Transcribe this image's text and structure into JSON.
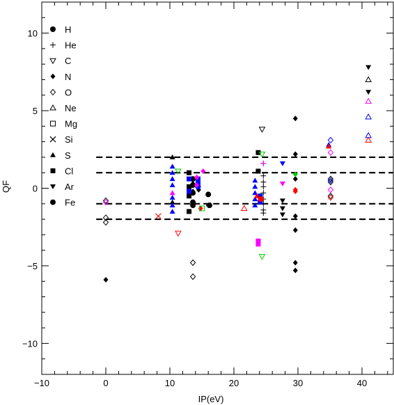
{
  "chart_data": {
    "type": "scatter",
    "title": "",
    "xlabel": "IP(eV)",
    "ylabel": "QF",
    "xlim": [
      -10,
      45
    ],
    "ylim": [
      -12,
      12
    ],
    "x_ticks": [
      -10,
      0,
      10,
      20,
      30,
      40
    ],
    "y_ticks": [
      -10,
      -5,
      0,
      5,
      10
    ],
    "grid": false,
    "legend_position": "left",
    "reference_lines": [
      {
        "y": 2,
        "style": "dashed"
      },
      {
        "y": 1,
        "style": "dashed"
      },
      {
        "y": -1,
        "style": "dashed"
      },
      {
        "y": -2,
        "style": "dashed"
      }
    ],
    "series": [
      {
        "name": "H",
        "marker": "filled-circle",
        "color": "#000000",
        "points": [
          [
            13.6,
            0.6
          ],
          [
            13.6,
            0.2
          ],
          [
            13.6,
            -0.3
          ],
          [
            13.6,
            -0.9
          ],
          [
            13.6,
            -1.1
          ],
          [
            16.0,
            -0.4
          ]
        ]
      },
      {
        "name": "He",
        "marker": "plus",
        "color": "#000000",
        "points": [
          [
            24.6,
            0.8
          ],
          [
            24.6,
            0.4
          ],
          [
            24.6,
            0.1
          ],
          [
            24.6,
            -0.3
          ],
          [
            24.6,
            -0.7
          ],
          [
            24.6,
            -1.0
          ],
          [
            24.6,
            -1.4
          ],
          [
            24.6,
            -1.6
          ],
          [
            24.6,
            1.6
          ]
        ]
      },
      {
        "name": "C",
        "marker": "open-triangle-down",
        "color": "#000000",
        "points": [
          [
            24.4,
            3.8
          ]
        ]
      },
      {
        "name": "N",
        "marker": "filled-diamond",
        "color": "#000000",
        "points": [
          [
            0,
            -5.9
          ],
          [
            13.6,
            -0.2
          ],
          [
            13.6,
            0.3
          ],
          [
            14.5,
            -0.1
          ],
          [
            29.6,
            4.5
          ],
          [
            29.6,
            2.2
          ],
          [
            29.6,
            0.6
          ],
          [
            29.6,
            -1.8
          ],
          [
            29.6,
            -2.7
          ],
          [
            29.6,
            -4.8
          ],
          [
            29.6,
            -5.3
          ],
          [
            16.0,
            -1.1
          ]
        ]
      },
      {
        "name": "O",
        "marker": "open-diamond",
        "color": "#000000",
        "points": [
          [
            0,
            -0.8
          ],
          [
            0,
            -1.9
          ],
          [
            0,
            -2.2
          ],
          [
            13.6,
            -4.8
          ],
          [
            13.6,
            -5.7
          ],
          [
            35.1,
            0.6
          ],
          [
            35.1,
            0.4
          ],
          [
            35.1,
            -0.5
          ]
        ]
      },
      {
        "name": "Ne",
        "marker": "open-triangle-up",
        "color": "#000000",
        "points": [
          [
            41.0,
            7.0
          ]
        ]
      },
      {
        "name": "Mg",
        "marker": "open-square",
        "color": "#000000",
        "points": []
      },
      {
        "name": "Si",
        "marker": "cross",
        "color": "#000000",
        "points": []
      },
      {
        "name": "S",
        "marker": "filled-triangle-up",
        "color": "#000000",
        "points": [
          [
            10.4,
            2.0
          ],
          [
            10.4,
            -0.9
          ]
        ]
      },
      {
        "name": "Cl",
        "marker": "filled-square",
        "color": "#000000",
        "points": [
          [
            13.0,
            -1.5
          ],
          [
            13.0,
            -0.5
          ],
          [
            13.0,
            0.1
          ],
          [
            13.0,
            1.0
          ],
          [
            23.8,
            2.3
          ],
          [
            23.8,
            1.1
          ]
        ]
      },
      {
        "name": "Ar",
        "marker": "filled-triangle-down",
        "color": "#000000",
        "points": [
          [
            41.0,
            7.8
          ],
          [
            41.0,
            6.2
          ],
          [
            27.6,
            -1.7
          ],
          [
            27.6,
            -1.3
          ],
          [
            27.6,
            -0.8
          ]
        ]
      },
      {
        "name": "Fe",
        "marker": "filled-circle",
        "color": "#000000",
        "points": [
          [
            16.2,
            -1.1
          ]
        ]
      },
      {
        "name": "",
        "marker": "filled-triangle-up",
        "color": "#0000ff",
        "points": [
          [
            10.4,
            1.4
          ],
          [
            10.4,
            1.0
          ],
          [
            10.4,
            0.6
          ],
          [
            10.4,
            0.2
          ],
          [
            10.4,
            -0.6
          ],
          [
            10.4,
            -1.1
          ],
          [
            10.4,
            -1.5
          ],
          [
            23.3,
            0.5
          ],
          [
            23.3,
            0.1
          ],
          [
            23.3,
            -0.3
          ],
          [
            23.3,
            -0.7
          ],
          [
            23.3,
            -1.1
          ],
          [
            34.8,
            2.8
          ]
        ]
      },
      {
        "name": "",
        "marker": "filled-square",
        "color": "#0000ff",
        "points": [
          [
            13.0,
            0.6
          ],
          [
            13.0,
            -0.2
          ],
          [
            14.4,
            0.6
          ],
          [
            14.4,
            0.3
          ],
          [
            24.1,
            -0.5
          ],
          [
            24.1,
            -0.9
          ]
        ]
      },
      {
        "name": "",
        "marker": "filled-circle",
        "color": "#0000ff",
        "points": [
          [
            14.4,
            0.1
          ]
        ]
      },
      {
        "name": "",
        "marker": "filled-triangle-down",
        "color": "#0000ff",
        "points": [
          [
            27.6,
            1.6
          ]
        ]
      },
      {
        "name": "",
        "marker": "open-diamond",
        "color": "#0000ff",
        "points": [
          [
            35.1,
            3.1
          ],
          [
            35.1,
            0.5
          ]
        ]
      },
      {
        "name": "",
        "marker": "open-triangle-up",
        "color": "#0000ff",
        "points": [
          [
            41.0,
            4.6
          ],
          [
            41.0,
            3.4
          ]
        ]
      },
      {
        "name": "",
        "marker": "filled-diamond",
        "color": "#ff00ff",
        "points": [
          [
            15.2,
            1.1
          ],
          [
            14.2,
            0.7
          ],
          [
            14.2,
            0.2
          ]
        ]
      },
      {
        "name": "",
        "marker": "filled-triangle-up",
        "color": "#ff00ff",
        "points": [
          [
            10.4,
            -0.3
          ]
        ]
      },
      {
        "name": "",
        "marker": "filled-square",
        "color": "#ff00ff",
        "points": [
          [
            23.8,
            -3.4
          ],
          [
            23.8,
            -3.6
          ]
        ]
      },
      {
        "name": "",
        "marker": "filled-triangle-down",
        "color": "#ff00ff",
        "points": [
          [
            27.6,
            0.3
          ]
        ]
      },
      {
        "name": "",
        "marker": "plus",
        "color": "#ff00ff",
        "points": [
          [
            24.6,
            1.6
          ]
        ]
      },
      {
        "name": "",
        "marker": "open-diamond",
        "color": "#ff00ff",
        "points": [
          [
            0,
            -0.9
          ],
          [
            35.1,
            2.3
          ],
          [
            35.1,
            -0.1
          ]
        ]
      },
      {
        "name": "",
        "marker": "open-triangle-up",
        "color": "#ff00ff",
        "points": [
          [
            41.0,
            5.6
          ]
        ]
      },
      {
        "name": "",
        "marker": "open-triangle-down",
        "color": "#ff0000",
        "points": [
          [
            11.3,
            -2.9
          ]
        ]
      },
      {
        "name": "",
        "marker": "cross",
        "color": "#ff0000",
        "points": [
          [
            8.2,
            -1.8
          ]
        ]
      },
      {
        "name": "",
        "marker": "open-triangle-up",
        "color": "#ff0000",
        "points": [
          [
            21.6,
            -1.3
          ],
          [
            41.0,
            3.1
          ]
        ]
      },
      {
        "name": "",
        "marker": "filled-triangle-up",
        "color": "#ff0000",
        "points": [
          [
            23.6,
            -0.5
          ],
          [
            34.8,
            2.7
          ]
        ]
      },
      {
        "name": "",
        "marker": "filled-diamond",
        "color": "#ff0000",
        "points": [
          [
            14.8,
            -1.3
          ],
          [
            29.6,
            -0.1
          ],
          [
            29.6,
            -0.2
          ]
        ]
      },
      {
        "name": "",
        "marker": "filled-circle",
        "color": "#ff0000",
        "points": [
          [
            24.2,
            -0.7
          ]
        ]
      },
      {
        "name": "",
        "marker": "open-diamond",
        "color": "#ff0000",
        "points": [
          [
            35.1,
            -0.6
          ]
        ]
      },
      {
        "name": "",
        "marker": "open-triangle-down",
        "color": "#00cc00",
        "points": [
          [
            11.3,
            1.1
          ],
          [
            24.4,
            2.2
          ],
          [
            24.4,
            -4.4
          ]
        ]
      },
      {
        "name": "",
        "marker": "open-square",
        "color": "#00cc00",
        "points": [
          [
            15.0,
            -1.3
          ]
        ]
      },
      {
        "name": "",
        "marker": "filled-diamond",
        "color": "#00cc00",
        "points": [
          [
            29.6,
            0.9
          ]
        ]
      }
    ]
  }
}
